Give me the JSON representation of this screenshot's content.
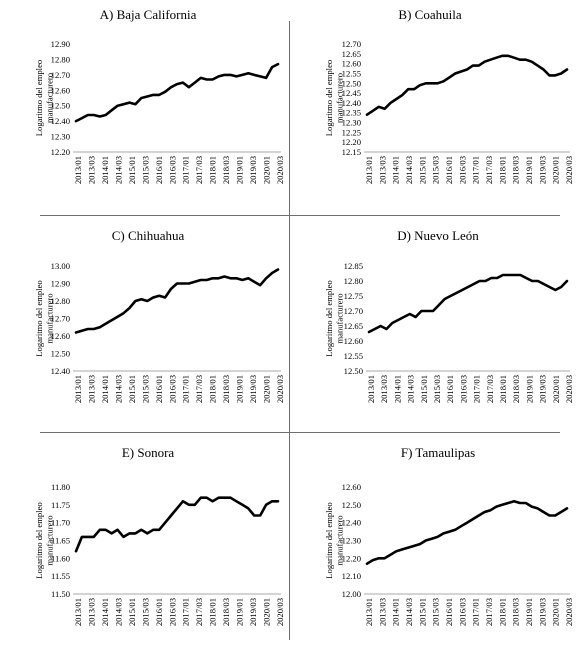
{
  "chart_data": [
    {
      "type": "line",
      "title": "A)   Baja California",
      "ylabel_lines": [
        "Logaritmo del empleo",
        "manufacturero"
      ],
      "ylim": [
        12.2,
        12.9
      ],
      "yticks": [
        "12.90",
        "12.80",
        "12.70",
        "12.60",
        "12.50",
        "12.40",
        "12.30",
        "12.20"
      ],
      "xticks": [
        "2013/01",
        "2013/03",
        "2014/01",
        "2014/03",
        "2015/01",
        "2015/03",
        "2016/01",
        "2016/03",
        "2017/01",
        "2017/03",
        "2018/01",
        "2018/03",
        "2019/01",
        "2019/03",
        "2020/01",
        "2020/03"
      ],
      "values": [
        12.4,
        12.42,
        12.44,
        12.44,
        12.43,
        12.44,
        12.47,
        12.5,
        12.51,
        12.52,
        12.51,
        12.55,
        12.56,
        12.57,
        12.57,
        12.59,
        12.62,
        12.64,
        12.65,
        12.62,
        12.65,
        12.68,
        12.67,
        12.67,
        12.69,
        12.7,
        12.7,
        12.69,
        12.7,
        12.71,
        12.7,
        12.69,
        12.68,
        12.75,
        12.77
      ],
      "grid": false
    },
    {
      "type": "line",
      "title": "B) Coahuila",
      "ylabel_lines": [
        "Logaritmo del empleo",
        "manufacturero"
      ],
      "ylim": [
        12.15,
        12.7
      ],
      "yticks": [
        "12.70",
        "12.65",
        "12.60",
        "12.55",
        "12.50",
        "12.45",
        "12.40",
        "12.35",
        "12.30",
        "12.25",
        "12.20",
        "12.15"
      ],
      "xticks": [
        "2013/01",
        "2013/03",
        "2014/01",
        "2014/03",
        "2015/01",
        "2015/03",
        "2016/01",
        "2016/03",
        "2017/01",
        "2017/03",
        "2018/01",
        "2018/03",
        "2019/01",
        "2019/03",
        "2020/01",
        "2020/03"
      ],
      "values": [
        12.34,
        12.36,
        12.38,
        12.37,
        12.4,
        12.42,
        12.44,
        12.47,
        12.47,
        12.49,
        12.5,
        12.5,
        12.5,
        12.51,
        12.53,
        12.55,
        12.56,
        12.57,
        12.59,
        12.59,
        12.61,
        12.62,
        12.63,
        12.64,
        12.64,
        12.63,
        12.62,
        12.62,
        12.61,
        12.59,
        12.57,
        12.54,
        12.54,
        12.55,
        12.57
      ],
      "grid": false
    },
    {
      "type": "line",
      "title": "C)   Chihuahua",
      "ylabel_lines": [
        "Logaritmo del empleo",
        "manufacturero"
      ],
      "ylim": [
        12.4,
        13.0
      ],
      "yticks": [
        "13.00",
        "12.90",
        "12.80",
        "12.70",
        "12.60",
        "12.50",
        "12.40"
      ],
      "xticks": [
        "2013/01",
        "2013/03",
        "2014/01",
        "2014/03",
        "2015/01",
        "2015/03",
        "2016/01",
        "2016/03",
        "2017/01",
        "2017/03",
        "2018/01",
        "2018/03",
        "2019/01",
        "2019/03",
        "2020/01",
        "2020/03"
      ],
      "values": [
        12.62,
        12.63,
        12.64,
        12.64,
        12.65,
        12.67,
        12.69,
        12.71,
        12.73,
        12.76,
        12.8,
        12.81,
        12.8,
        12.82,
        12.83,
        12.82,
        12.87,
        12.9,
        12.9,
        12.9,
        12.91,
        12.92,
        12.92,
        12.93,
        12.93,
        12.94,
        12.93,
        12.93,
        12.92,
        12.93,
        12.91,
        12.89,
        12.93,
        12.96,
        12.98
      ],
      "grid": false
    },
    {
      "type": "line",
      "title": "D) Nuevo León",
      "ylabel_lines": [
        "Logaritmo del empleo",
        "manufacturero"
      ],
      "ylim": [
        12.5,
        12.85
      ],
      "yticks": [
        "12.85",
        "12.80",
        "12.75",
        "12.70",
        "12.65",
        "12.60",
        "12.55",
        "12.50"
      ],
      "xticks": [
        "2013/01",
        "2013/03",
        "2014/01",
        "2014/03",
        "2015/01",
        "2015/03",
        "2016/01",
        "2016/03",
        "2017/01",
        "2017/03",
        "2018/01",
        "2018/03",
        "2019/01",
        "2019/03",
        "2020/01",
        "2020/03"
      ],
      "values": [
        12.63,
        12.64,
        12.65,
        12.64,
        12.66,
        12.67,
        12.68,
        12.69,
        12.68,
        12.7,
        12.7,
        12.7,
        12.72,
        12.74,
        12.75,
        12.76,
        12.77,
        12.78,
        12.79,
        12.8,
        12.8,
        12.81,
        12.81,
        12.82,
        12.82,
        12.82,
        12.82,
        12.81,
        12.8,
        12.8,
        12.79,
        12.78,
        12.77,
        12.78,
        12.8
      ],
      "grid": false
    },
    {
      "type": "line",
      "title": "E)    Sonora",
      "ylabel_lines": [
        "Logaritmo del empleo",
        "manufacturero"
      ],
      "ylim": [
        11.5,
        11.8
      ],
      "yticks": [
        "11.80",
        "11.75",
        "11.70",
        "11.65",
        "11.60",
        "11.55",
        "11.50"
      ],
      "xticks": [
        "2013/01",
        "2013/03",
        "2014/01",
        "2014/03",
        "2015/01",
        "2015/03",
        "2016/01",
        "2016/03",
        "2017/01",
        "2017/03",
        "2018/01",
        "2018/03",
        "2019/01",
        "2019/03",
        "2020/01",
        "2020/03"
      ],
      "values": [
        11.62,
        11.66,
        11.66,
        11.66,
        11.68,
        11.68,
        11.67,
        11.68,
        11.66,
        11.67,
        11.67,
        11.68,
        11.67,
        11.68,
        11.68,
        11.7,
        11.72,
        11.74,
        11.76,
        11.75,
        11.75,
        11.77,
        11.77,
        11.76,
        11.77,
        11.77,
        11.77,
        11.76,
        11.75,
        11.74,
        11.72,
        11.72,
        11.75,
        11.76,
        11.76
      ],
      "grid": false
    },
    {
      "type": "line",
      "title": "F) Tamaulipas",
      "ylabel_lines": [
        "Logaritmo del empleo",
        "manufacturero"
      ],
      "ylim": [
        12.0,
        12.6
      ],
      "yticks": [
        "12.60",
        "12.50",
        "12.40",
        "12.30",
        "12.20",
        "12.10",
        "12.00"
      ],
      "xticks": [
        "2013/01",
        "2013/03",
        "2014/01",
        "2014/03",
        "2015/01",
        "2015/03",
        "2016/01",
        "2016/03",
        "2017/01",
        "2017/03",
        "2018/01",
        "2018/03",
        "2019/01",
        "2019/03",
        "2020/01",
        "2020/03"
      ],
      "values": [
        12.17,
        12.19,
        12.2,
        12.2,
        12.22,
        12.24,
        12.25,
        12.26,
        12.27,
        12.28,
        12.3,
        12.31,
        12.32,
        12.34,
        12.35,
        12.36,
        12.38,
        12.4,
        12.42,
        12.44,
        12.46,
        12.47,
        12.49,
        12.5,
        12.51,
        12.52,
        12.51,
        12.51,
        12.49,
        12.48,
        12.46,
        12.44,
        12.44,
        12.46,
        12.48
      ],
      "grid": false
    }
  ]
}
